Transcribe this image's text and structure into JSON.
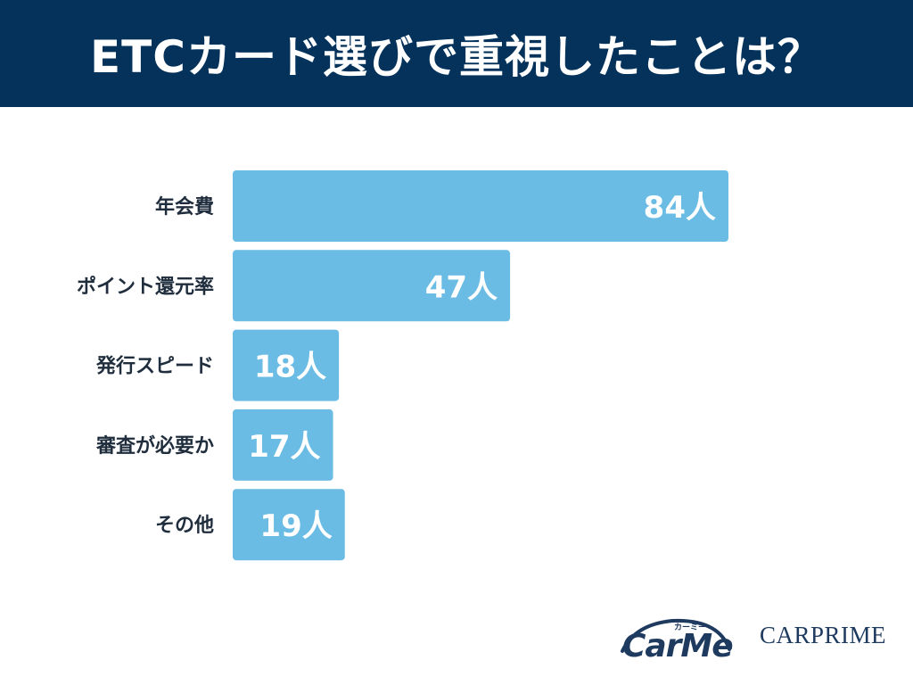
{
  "header": {
    "title": "ETCカード選びで重視したことは？"
  },
  "colors": {
    "header_bg": "#04325b",
    "bar": "#6bbce5",
    "text_dark": "#1f2d3d",
    "label_light": "#ffffff"
  },
  "chart_data": {
    "type": "bar",
    "orientation": "horizontal",
    "categories": [
      "年会費",
      "ポイント還元率",
      "発行スピード",
      "審査が必要か",
      "その他"
    ],
    "values": [
      84,
      47,
      18,
      17,
      19
    ],
    "value_labels": [
      "84人",
      "47人",
      "18人",
      "17人",
      "19人"
    ],
    "unit": "人",
    "title": "ETCカード選びで重視したことは？",
    "xlim": [
      0,
      84
    ],
    "grid": false,
    "legend": "none"
  },
  "logos": {
    "carme_kana": "カーミー",
    "carme_word": "CarMe",
    "carprime": "CARPRIME"
  }
}
